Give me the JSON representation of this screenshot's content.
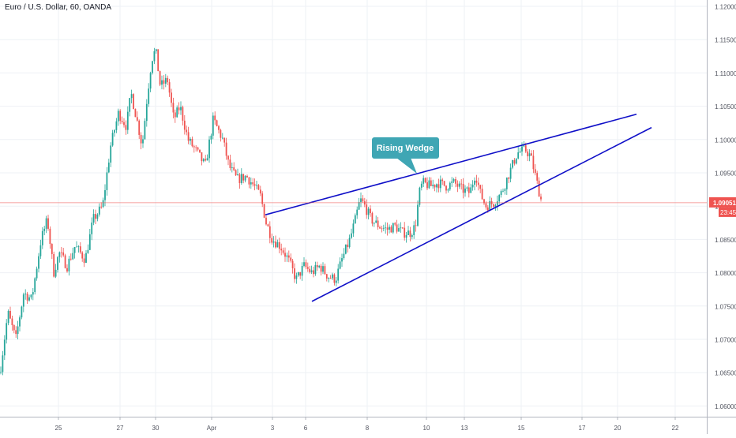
{
  "header": {
    "title": "Euro / U.S. Dollar, 60, OANDA"
  },
  "colors": {
    "up": "#26a69a",
    "down": "#ef5350",
    "wedge": "#1010c8",
    "callout": "#3fa6b4",
    "price_line": "#ef5350",
    "grid": "#eef1f5",
    "axis_text": "#50535e"
  },
  "chart_data": {
    "type": "candlestick",
    "symbol": "Euro / U.S. Dollar",
    "interval": "60",
    "source": "OANDA",
    "y_ticks": [
      "1.12000",
      "1.11500",
      "1.11000",
      "1.10500",
      "1.10000",
      "1.09500",
      "1.09000",
      "1.08500",
      "1.08000",
      "1.07500",
      "1.07000",
      "1.06500",
      "1.06000"
    ],
    "x_ticks": [
      "25",
      "27",
      "30",
      "Apr",
      "3",
      "6",
      "8",
      "10",
      "13",
      "15",
      "17",
      "20",
      "22"
    ],
    "ylim": [
      1.0595,
      1.1205
    ],
    "last_price": "1.09051",
    "countdown": "23:45",
    "annotation": "Rising Wedge",
    "price_path": [
      [
        0,
        1.065
      ],
      [
        10,
        1.074
      ],
      [
        20,
        1.07
      ],
      [
        30,
        1.077
      ],
      [
        40,
        1.076
      ],
      [
        52,
        1.085
      ],
      [
        60,
        1.088
      ],
      [
        68,
        1.08
      ],
      [
        75,
        1.083
      ],
      [
        85,
        1.081
      ],
      [
        95,
        1.084
      ],
      [
        108,
        1.082
      ],
      [
        118,
        1.088
      ],
      [
        130,
        1.09
      ],
      [
        140,
        1.099
      ],
      [
        150,
        1.104
      ],
      [
        160,
        1.102
      ],
      [
        166,
        1.107
      ],
      [
        175,
        1.102
      ],
      [
        180,
        1.099
      ],
      [
        186,
        1.106
      ],
      [
        192,
        1.112
      ],
      [
        197,
        1.1135
      ],
      [
        203,
        1.108
      ],
      [
        212,
        1.109
      ],
      [
        220,
        1.103
      ],
      [
        228,
        1.105
      ],
      [
        238,
        1.1
      ],
      [
        250,
        1.098
      ],
      [
        260,
        1.096
      ],
      [
        270,
        1.103
      ],
      [
        282,
        1.1
      ],
      [
        290,
        1.096
      ],
      [
        300,
        1.094
      ],
      [
        312,
        1.0945
      ],
      [
        322,
        1.093
      ],
      [
        330,
        1.0915
      ],
      [
        337,
        1.0875
      ],
      [
        345,
        1.085
      ],
      [
        355,
        1.084
      ],
      [
        365,
        1.082
      ],
      [
        375,
        1.079
      ],
      [
        385,
        1.081
      ],
      [
        395,
        1.08
      ],
      [
        405,
        1.081
      ],
      [
        415,
        1.0795
      ],
      [
        425,
        1.079
      ],
      [
        433,
        1.082
      ],
      [
        443,
        1.085
      ],
      [
        450,
        1.088
      ],
      [
        456,
        1.091
      ],
      [
        462,
        1.09
      ],
      [
        470,
        1.088
      ],
      [
        480,
        1.087
      ],
      [
        490,
        1.0865
      ],
      [
        500,
        1.087
      ],
      [
        510,
        1.086
      ],
      [
        520,
        1.086
      ],
      [
        526,
        1.087
      ],
      [
        531,
        1.092
      ],
      [
        535,
        1.0935
      ],
      [
        545,
        1.093
      ],
      [
        555,
        1.0935
      ],
      [
        565,
        1.093
      ],
      [
        575,
        1.0935
      ],
      [
        585,
        1.0925
      ],
      [
        595,
        1.092
      ],
      [
        602,
        1.095
      ],
      [
        608,
        1.092
      ],
      [
        615,
        1.09
      ],
      [
        625,
        1.0905
      ],
      [
        635,
        1.092
      ],
      [
        645,
        1.095
      ],
      [
        655,
        1.098
      ],
      [
        665,
        1.0985
      ],
      [
        672,
        1.0975
      ],
      [
        678,
        1.0945
      ],
      [
        682,
        1.0925
      ],
      [
        686,
        1.0905
      ]
    ],
    "wedge_lines": [
      {
        "name": "upper",
        "p1": [
          336,
          1.0887
        ],
        "p2": [
          806,
          1.1038
        ]
      },
      {
        "name": "lower",
        "p1": [
          395,
          1.0757
        ],
        "p2": [
          825,
          1.1018
        ]
      }
    ]
  }
}
